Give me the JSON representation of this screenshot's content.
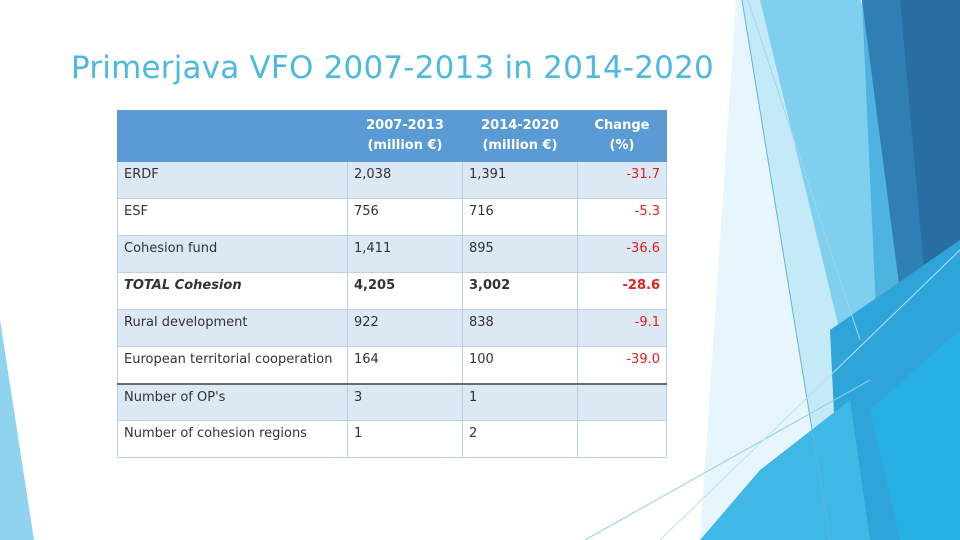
{
  "slide": {
    "title": "Primerjava VFO 2007-2013 in 2014-2020"
  },
  "table": {
    "columns": [
      {
        "line1": "",
        "line2": ""
      },
      {
        "line1": "2007-2013",
        "line2": "(million €)"
      },
      {
        "line1": "2014-2020",
        "line2": "(million €)"
      },
      {
        "line1": "Change",
        "line2": "(%)"
      }
    ],
    "rows": [
      {
        "label": "ERDF",
        "v2007": "2,038",
        "v2014": "1,391",
        "change": "-31.7"
      },
      {
        "label": "ESF",
        "v2007": "756",
        "v2014": "716",
        "change": "-5.3"
      },
      {
        "label": "Cohesion fund",
        "v2007": "1,411",
        "v2014": "895",
        "change": "-36.6"
      },
      {
        "label": "TOTAL Cohesion",
        "v2007": "4,205",
        "v2014": "3,002",
        "change": "-28.6"
      },
      {
        "label": "Rural development",
        "v2007": "922",
        "v2014": "838",
        "change": "-9.1"
      },
      {
        "label": "European territorial cooperation",
        "v2007": "164",
        "v2014": "100",
        "change": "-39.0"
      },
      {
        "label": "Number of OP's",
        "v2007": "3",
        "v2014": "1",
        "change": ""
      },
      {
        "label": "Number of cohesion regions",
        "v2007": "1",
        "v2014": "2",
        "change": ""
      }
    ]
  },
  "colors": {
    "title": "#4db8e0",
    "header_bg": "#5b9bd5",
    "row_band": "#dde8f5",
    "negative_change": "#e0201c"
  }
}
